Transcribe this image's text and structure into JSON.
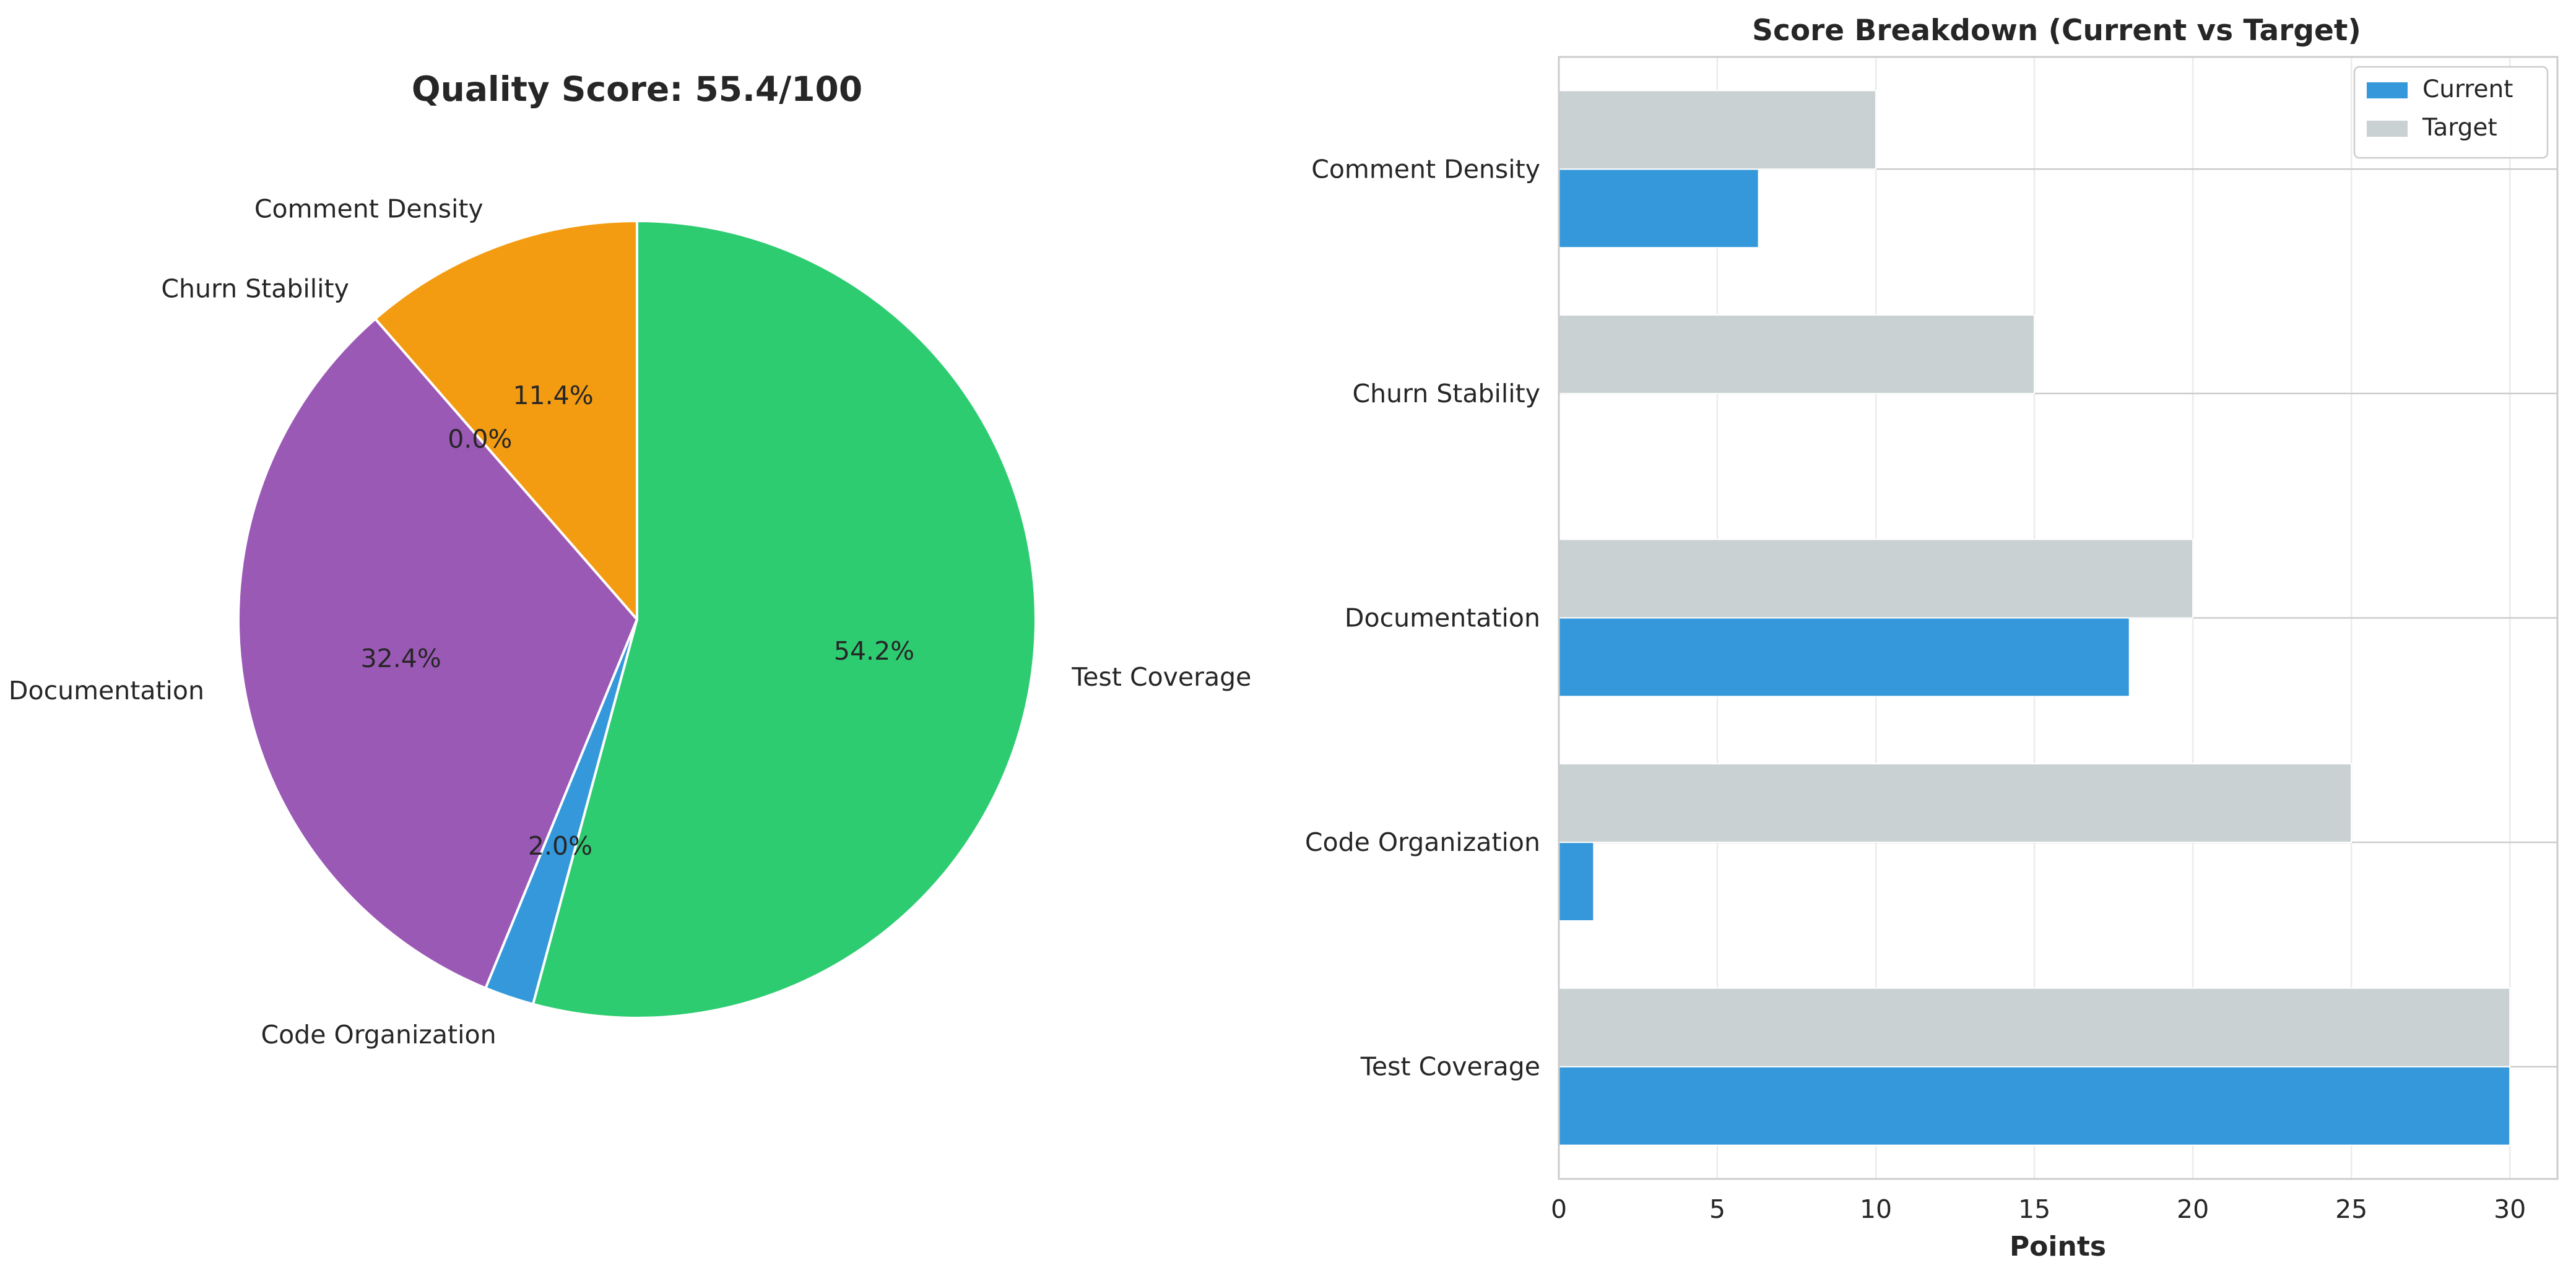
{
  "chart_data": [
    {
      "type": "pie",
      "title": "Quality Score: 55.4/100",
      "start_angle_deg": 90,
      "direction": "counterclockwise",
      "slices": [
        {
          "label": "Comment Density",
          "value": 11.4,
          "pct_label": "11.4%",
          "color": "#f39c12"
        },
        {
          "label": "Churn Stability",
          "value": 0.0,
          "pct_label": "0.0%",
          "color": "#e74c3c"
        },
        {
          "label": "Documentation",
          "value": 32.4,
          "pct_label": "32.4%",
          "color": "#9b59b6"
        },
        {
          "label": "Code Organization",
          "value": 2.0,
          "pct_label": "2.0%",
          "color": "#3498db"
        },
        {
          "label": "Test Coverage",
          "value": 54.2,
          "pct_label": "54.2%",
          "color": "#2ecc71"
        }
      ]
    },
    {
      "type": "bar",
      "orientation": "horizontal",
      "title": "Score Breakdown (Current vs Target)",
      "xlabel": "Points",
      "ylabel": "",
      "xlim": [
        0,
        31.5
      ],
      "xticks": [
        0,
        5,
        10,
        15,
        20,
        25,
        30
      ],
      "grid": true,
      "legend_position": "upper-right",
      "categories": [
        "Test Coverage",
        "Code Organization",
        "Documentation",
        "Churn Stability",
        "Comment Density"
      ],
      "series": [
        {
          "name": "Current",
          "color": "#3498db",
          "values": [
            30.0,
            1.1,
            18.0,
            0.0,
            6.3
          ]
        },
        {
          "name": "Target",
          "color": "#c9d1d3",
          "values": [
            30,
            25,
            20,
            15,
            10
          ]
        }
      ]
    }
  ]
}
